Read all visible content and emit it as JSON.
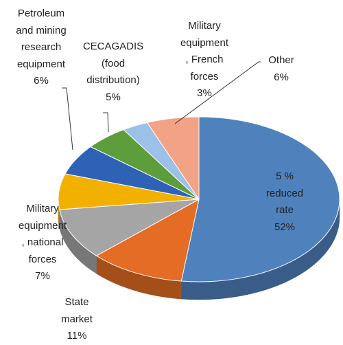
{
  "chart_data": {
    "type": "pie",
    "categories": [
      "5 %\nreduced\nrate",
      "State\nmarket",
      null,
      "Military\nequipment\n, national\nforces",
      "Petroleum\nand mining\nresearch\nequipment",
      "CECAGADIS\n(food\ndistribution)",
      "Military\nequipment\n, French\nforces",
      "Other"
    ],
    "values": [
      52,
      11,
      10,
      7,
      6,
      5,
      3,
      6
    ],
    "value_labels": [
      "52%",
      "11%",
      null,
      "7%",
      "6%",
      "5%",
      "3%",
      "6%"
    ],
    "colors": [
      "#4f81bd",
      "#e46c24",
      "#a5a5a5",
      "#f2b000",
      "#2e62b6",
      "#5e9d3b",
      "#9dc0e8",
      "#f2a285"
    ]
  }
}
